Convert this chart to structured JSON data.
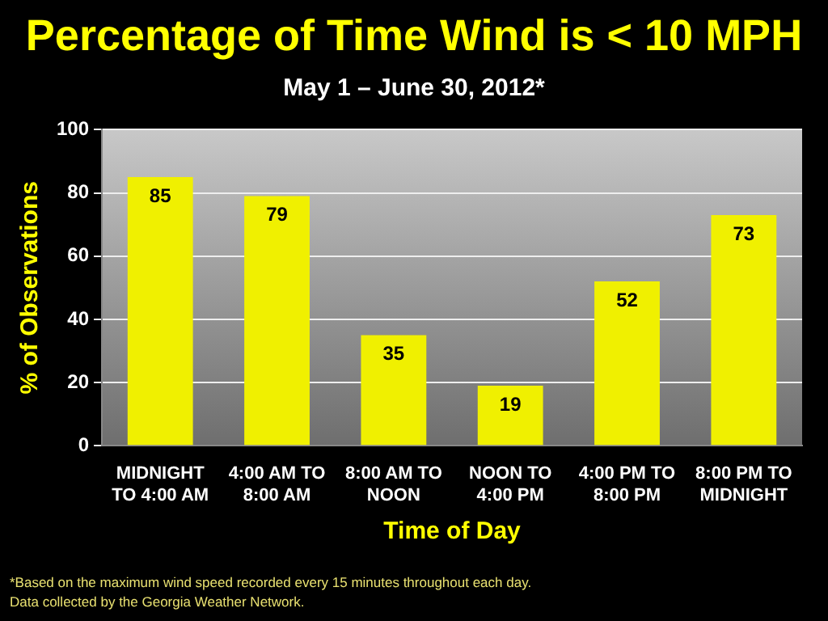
{
  "chart_data": {
    "type": "bar",
    "title": "Percentage of Time Wind is < 10 MPH",
    "subtitle": "May 1 – June 30, 2012*",
    "xlabel": "Time of Day",
    "ylabel": "% of Observations",
    "categories": [
      "MIDNIGHT TO 4:00 AM",
      "4:00 AM TO 8:00 AM",
      "8:00 AM TO NOON",
      "NOON TO 4:00 PM",
      "4:00 PM TO 8:00 PM",
      "8:00 PM TO MIDNIGHT"
    ],
    "values": [
      85,
      79,
      35,
      19,
      52,
      73
    ],
    "color": "#f0f000",
    "ylim": [
      0,
      100
    ],
    "yticks": [
      0,
      20,
      40,
      60,
      80,
      100
    ],
    "grid": "y",
    "legend": false,
    "data_labels": true,
    "annotations": [
      "*Based on the maximum wind speed recorded every 15 minutes throughout each day. Data collected by the  Georgia Weather Network."
    ]
  }
}
